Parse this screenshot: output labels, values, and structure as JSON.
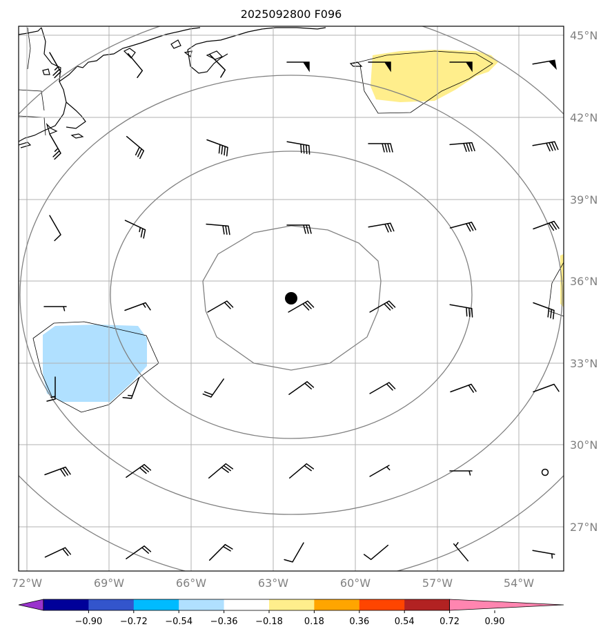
{
  "title": "2025092800 F096",
  "lat_labels": [
    "45°N",
    "42°N",
    "39°N",
    "36°N",
    "33°N",
    "30°N",
    "27°N"
  ],
  "lon_labels": [
    "72°W",
    "69°W",
    "66°W",
    "63°W",
    "60°W",
    "57°W",
    "54°W"
  ],
  "colorbar": {
    "ticks": [
      "−0.90",
      "−0.72",
      "−0.54",
      "−0.36",
      "−0.18",
      "0.18",
      "0.36",
      "0.54",
      "0.72",
      "0.90"
    ],
    "colors": [
      "#9933cc",
      "#000099",
      "#3355cc",
      "#00bbff",
      "#b0e0ff",
      "#ffffff",
      "#ffee8c",
      "#ffa500",
      "#ff4500",
      "#b22222",
      "#ff85b0"
    ]
  },
  "center_marker": {
    "lon": -62.3,
    "lat": 35.4
  },
  "positive_region_color": "#ffee8c",
  "negative_region_color": "#b0e0ff"
}
